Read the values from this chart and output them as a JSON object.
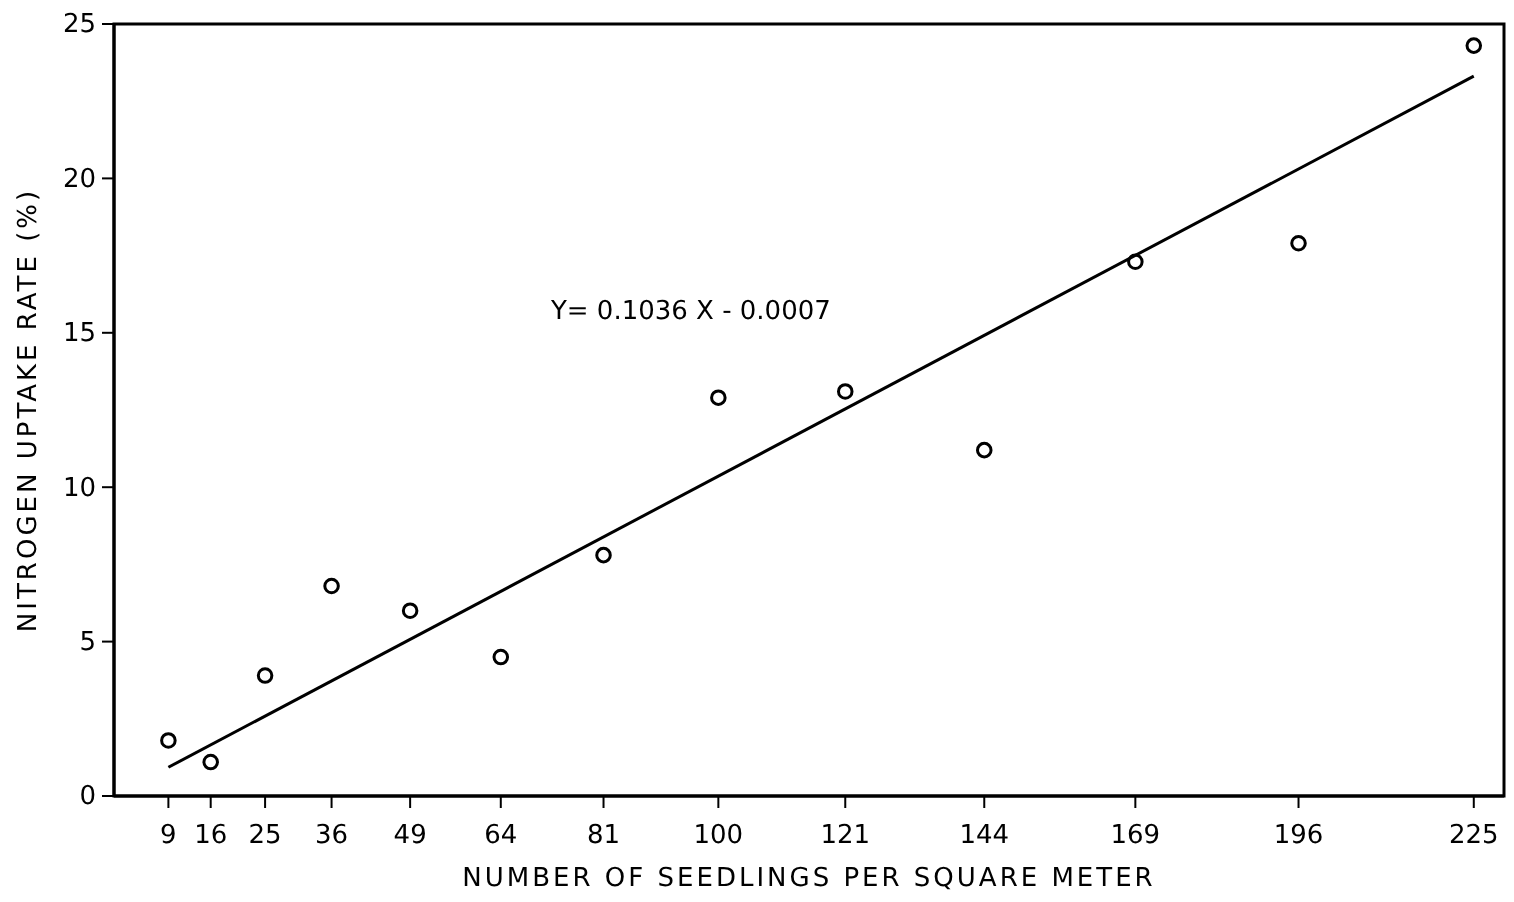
{
  "chart_data": {
    "type": "scatter",
    "xlabel": "NUMBER OF SEEDLINGS PER SQUARE METER",
    "ylabel": "NITROGEN UPTAKE RATE (%)",
    "xlim": [
      0,
      230
    ],
    "xticks": [
      9,
      16,
      25,
      36,
      49,
      64,
      81,
      100,
      121,
      144,
      169,
      196,
      225
    ],
    "ylim": [
      0,
      25
    ],
    "yticks": [
      0,
      5,
      10,
      15,
      20,
      25
    ],
    "grid": false,
    "annotations": [
      "Y= 0.1036 X - 0.0007"
    ],
    "series": [
      {
        "marker": "circle",
        "color": "#000000",
        "x": [
          9,
          16,
          25,
          36,
          49,
          64,
          81,
          100,
          121,
          144,
          169,
          196,
          225
        ],
        "values": [
          1.8,
          1.1,
          3.9,
          6.8,
          6.0,
          4.5,
          7.8,
          12.9,
          13.1,
          11.2,
          17.3,
          17.9,
          24.3
        ]
      },
      {
        "type": "line",
        "marker": "none",
        "color": "#000000",
        "x": [
          9,
          225
        ],
        "values": [
          0.93,
          23.31
        ]
      }
    ]
  }
}
